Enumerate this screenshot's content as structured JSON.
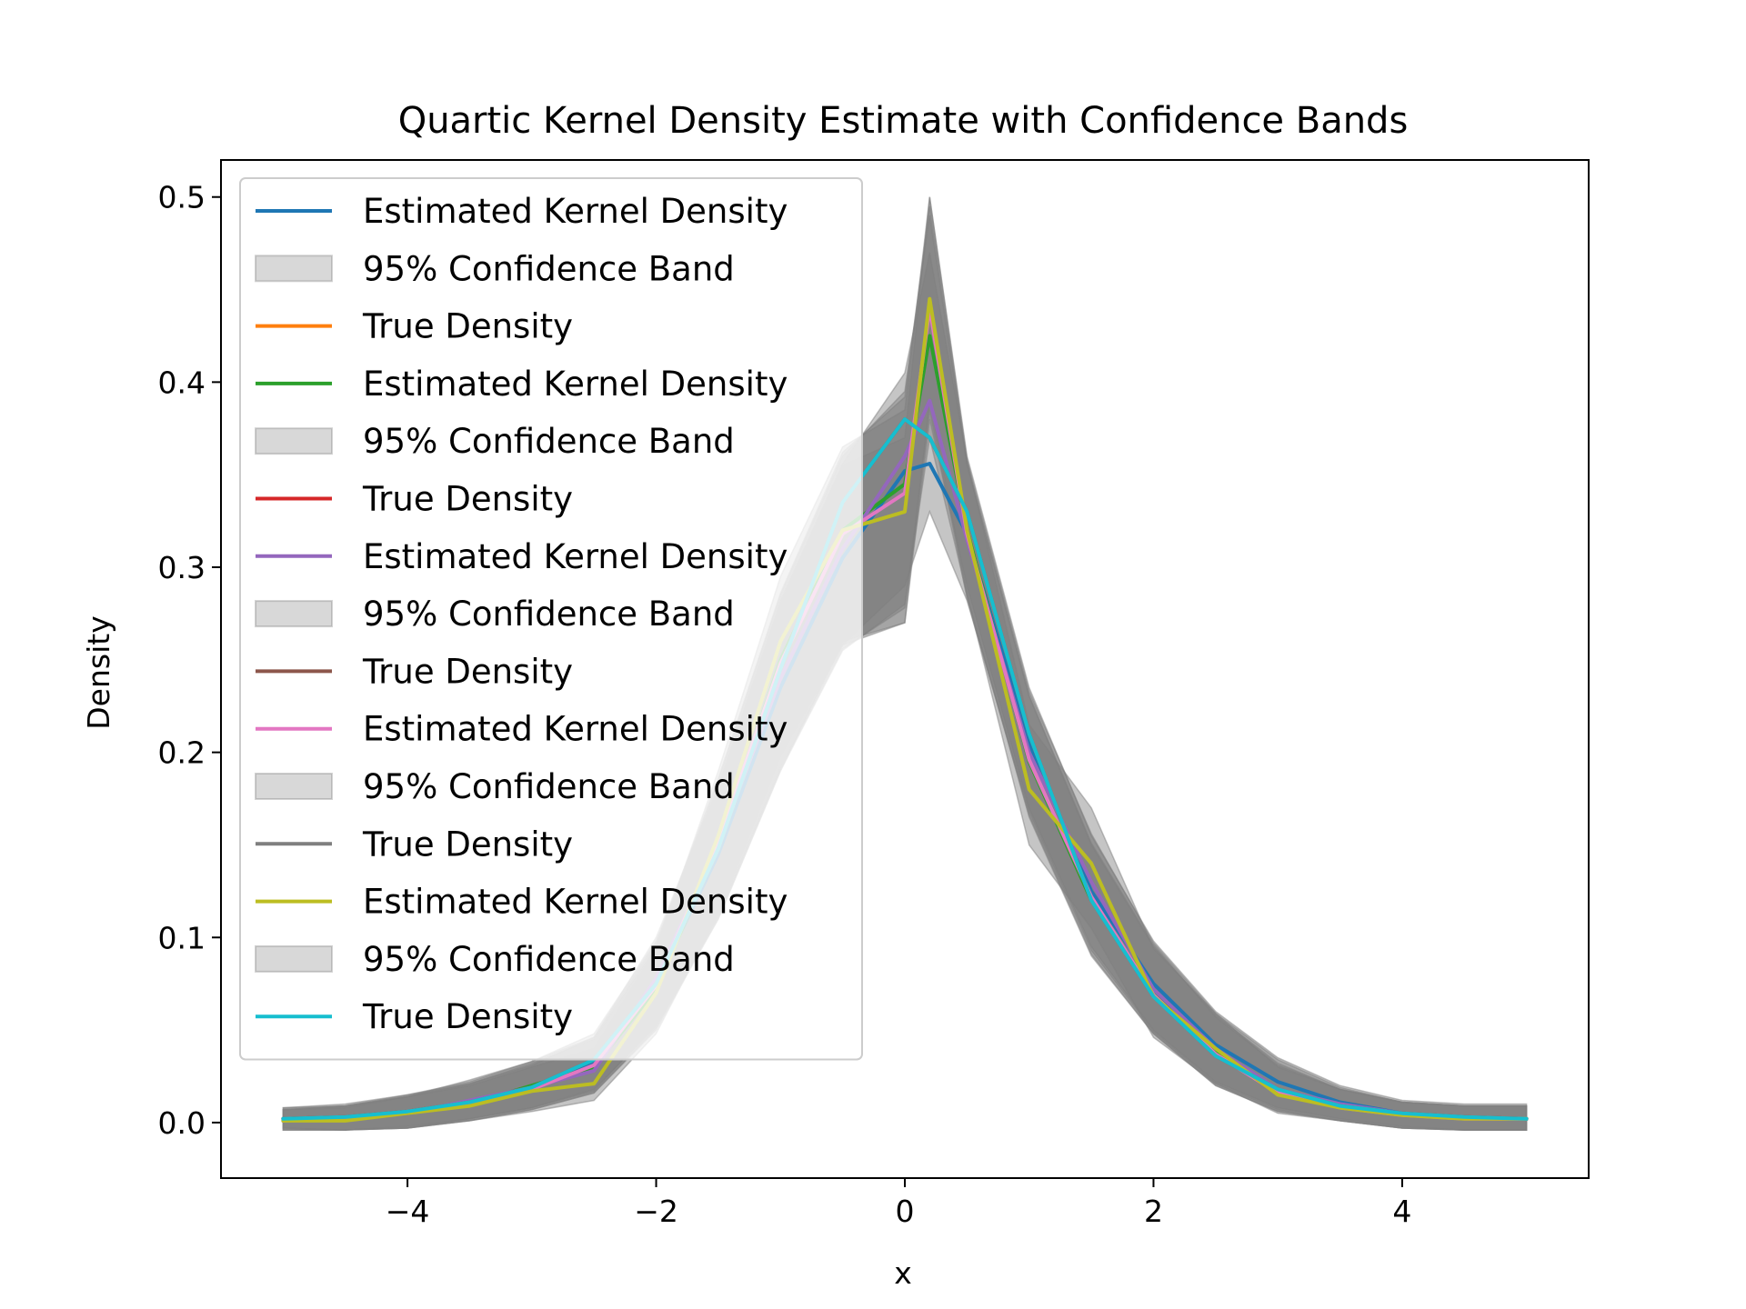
{
  "chart_data": {
    "type": "line",
    "title": "Quartic Kernel Density Estimate with Confidence Bands",
    "xlabel": "x",
    "ylabel": "Density",
    "xlim": [
      -5.5,
      5.5
    ],
    "ylim": [
      -0.03,
      0.52
    ],
    "xticks": [
      -4,
      -2,
      0,
      2,
      4
    ],
    "xtick_labels": [
      "−4",
      "−2",
      "0",
      "2",
      "4"
    ],
    "yticks": [
      0.0,
      0.1,
      0.2,
      0.3,
      0.4,
      0.5
    ],
    "ytick_labels": [
      "0.0",
      "0.1",
      "0.2",
      "0.3",
      "0.4",
      "0.5"
    ],
    "grid": false,
    "legend_position": "upper-left",
    "x": [
      -5.0,
      -4.5,
      -4.0,
      -3.5,
      -3.0,
      -2.5,
      -2.0,
      -1.5,
      -1.0,
      -0.5,
      0.0,
      0.2,
      0.5,
      1.0,
      1.5,
      2.0,
      2.5,
      3.0,
      3.5,
      4.0,
      4.5,
      5.0
    ],
    "series": [
      {
        "name": "Estimated Kernel Density",
        "kind": "line",
        "color": "#1f77b4",
        "values": [
          0.002,
          0.003,
          0.006,
          0.011,
          0.018,
          0.032,
          0.075,
          0.145,
          0.235,
          0.305,
          0.352,
          0.356,
          0.318,
          0.205,
          0.125,
          0.075,
          0.042,
          0.022,
          0.011,
          0.005,
          0.003,
          0.002
        ]
      },
      {
        "name": "95% Confidence Band",
        "kind": "band",
        "color": "#7f7f7f",
        "lower": [
          -0.003,
          -0.004,
          -0.003,
          0.002,
          0.008,
          0.018,
          0.052,
          0.11,
          0.19,
          0.26,
          0.27,
          0.38,
          0.29,
          0.17,
          0.095,
          0.05,
          0.022,
          0.008,
          0.002,
          -0.002,
          -0.004,
          -0.004
        ],
        "upper": [
          0.008,
          0.01,
          0.015,
          0.022,
          0.033,
          0.048,
          0.098,
          0.18,
          0.28,
          0.355,
          0.37,
          0.5,
          0.36,
          0.235,
          0.155,
          0.098,
          0.06,
          0.035,
          0.02,
          0.012,
          0.01,
          0.01
        ]
      },
      {
        "name": "True Density",
        "kind": "line",
        "color": "#ff7f0e",
        "values": [
          0.002,
          0.003,
          0.006,
          0.011,
          0.019,
          0.034,
          0.075,
          0.148,
          0.245,
          0.335,
          0.38,
          0.37,
          0.33,
          0.21,
          0.12,
          0.068,
          0.036,
          0.018,
          0.009,
          0.005,
          0.003,
          0.002
        ]
      },
      {
        "name": "Estimated Kernel Density",
        "kind": "line",
        "color": "#2ca02c",
        "values": [
          0.001,
          0.002,
          0.005,
          0.01,
          0.02,
          0.03,
          0.072,
          0.15,
          0.25,
          0.32,
          0.345,
          0.425,
          0.32,
          0.195,
          0.12,
          0.07,
          0.038,
          0.016,
          0.008,
          0.004,
          0.002,
          0.002
        ]
      },
      {
        "name": "95% Confidence Band",
        "kind": "band",
        "color": "#7f7f7f",
        "lower": [
          -0.004,
          -0.004,
          -0.003,
          0.001,
          0.007,
          0.016,
          0.05,
          0.11,
          0.19,
          0.255,
          0.28,
          0.37,
          0.285,
          0.165,
          0.09,
          0.048,
          0.02,
          0.006,
          0.001,
          -0.003,
          -0.004,
          -0.004
        ],
        "upper": [
          0.007,
          0.009,
          0.014,
          0.021,
          0.032,
          0.045,
          0.095,
          0.185,
          0.285,
          0.36,
          0.395,
          0.49,
          0.355,
          0.23,
          0.15,
          0.095,
          0.058,
          0.032,
          0.018,
          0.011,
          0.009,
          0.009
        ]
      },
      {
        "name": "True Density",
        "kind": "line",
        "color": "#d62728",
        "values": [
          0.002,
          0.003,
          0.006,
          0.011,
          0.019,
          0.034,
          0.075,
          0.148,
          0.245,
          0.335,
          0.38,
          0.37,
          0.33,
          0.21,
          0.12,
          0.068,
          0.036,
          0.018,
          0.009,
          0.005,
          0.003,
          0.002
        ]
      },
      {
        "name": "Estimated Kernel Density",
        "kind": "line",
        "color": "#9467bd",
        "values": [
          0.002,
          0.002,
          0.005,
          0.012,
          0.019,
          0.028,
          0.078,
          0.15,
          0.24,
          0.31,
          0.36,
          0.39,
          0.315,
          0.2,
          0.13,
          0.072,
          0.04,
          0.018,
          0.01,
          0.005,
          0.002,
          0.002
        ]
      },
      {
        "name": "95% Confidence Band",
        "kind": "band",
        "color": "#7f7f7f",
        "lower": [
          -0.003,
          -0.004,
          -0.002,
          0.002,
          0.008,
          0.017,
          0.053,
          0.112,
          0.192,
          0.258,
          0.29,
          0.33,
          0.282,
          0.168,
          0.093,
          0.049,
          0.021,
          0.007,
          0.001,
          -0.003,
          -0.004,
          -0.004
        ],
        "upper": [
          0.008,
          0.009,
          0.014,
          0.023,
          0.033,
          0.046,
          0.1,
          0.182,
          0.282,
          0.356,
          0.405,
          0.47,
          0.358,
          0.233,
          0.156,
          0.097,
          0.059,
          0.034,
          0.019,
          0.011,
          0.009,
          0.009
        ]
      },
      {
        "name": "True Density",
        "kind": "line",
        "color": "#8c564b",
        "values": [
          0.002,
          0.003,
          0.006,
          0.011,
          0.019,
          0.034,
          0.075,
          0.148,
          0.245,
          0.335,
          0.38,
          0.37,
          0.33,
          0.21,
          0.12,
          0.068,
          0.036,
          0.018,
          0.009,
          0.005,
          0.003,
          0.002
        ]
      },
      {
        "name": "Estimated Kernel Density",
        "kind": "line",
        "color": "#e377c2",
        "values": [
          0.001,
          0.002,
          0.006,
          0.01,
          0.018,
          0.031,
          0.074,
          0.152,
          0.248,
          0.318,
          0.34,
          0.44,
          0.318,
          0.196,
          0.122,
          0.069,
          0.037,
          0.016,
          0.008,
          0.004,
          0.002,
          0.002
        ]
      },
      {
        "name": "95% Confidence Band",
        "kind": "band",
        "color": "#7f7f7f",
        "lower": [
          -0.004,
          -0.004,
          -0.003,
          0.001,
          0.007,
          0.016,
          0.051,
          0.111,
          0.191,
          0.256,
          0.278,
          0.385,
          0.283,
          0.166,
          0.091,
          0.048,
          0.02,
          0.006,
          0.001,
          -0.003,
          -0.004,
          -0.004
        ],
        "upper": [
          0.007,
          0.009,
          0.015,
          0.021,
          0.031,
          0.046,
          0.097,
          0.186,
          0.286,
          0.362,
          0.392,
          0.495,
          0.356,
          0.231,
          0.151,
          0.096,
          0.057,
          0.031,
          0.018,
          0.011,
          0.009,
          0.009
        ]
      },
      {
        "name": "True Density",
        "kind": "line",
        "color": "#7f7f7f",
        "values": [
          0.002,
          0.003,
          0.006,
          0.011,
          0.019,
          0.034,
          0.075,
          0.148,
          0.245,
          0.335,
          0.38,
          0.37,
          0.33,
          0.21,
          0.12,
          0.068,
          0.036,
          0.018,
          0.009,
          0.005,
          0.003,
          0.002
        ]
      },
      {
        "name": "Estimated Kernel Density",
        "kind": "line",
        "color": "#bcbd22",
        "values": [
          0.001,
          0.001,
          0.005,
          0.009,
          0.017,
          0.021,
          0.07,
          0.155,
          0.26,
          0.32,
          0.33,
          0.445,
          0.32,
          0.18,
          0.14,
          0.068,
          0.04,
          0.015,
          0.008,
          0.004,
          0.002,
          0.002
        ]
      },
      {
        "name": "95% Confidence Band",
        "kind": "band",
        "color": "#7f7f7f",
        "lower": [
          -0.004,
          -0.004,
          -0.003,
          0.001,
          0.006,
          0.012,
          0.048,
          0.113,
          0.198,
          0.258,
          0.27,
          0.39,
          0.285,
          0.15,
          0.105,
          0.046,
          0.021,
          0.005,
          0.001,
          -0.003,
          -0.004,
          -0.004
        ],
        "upper": [
          0.007,
          0.008,
          0.014,
          0.02,
          0.03,
          0.04,
          0.094,
          0.19,
          0.295,
          0.365,
          0.385,
          0.5,
          0.358,
          0.215,
          0.17,
          0.094,
          0.059,
          0.03,
          0.018,
          0.011,
          0.009,
          0.009
        ]
      },
      {
        "name": "True Density",
        "kind": "line",
        "color": "#17becf",
        "values": [
          0.002,
          0.003,
          0.006,
          0.011,
          0.019,
          0.034,
          0.075,
          0.148,
          0.245,
          0.335,
          0.38,
          0.37,
          0.33,
          0.21,
          0.12,
          0.068,
          0.036,
          0.018,
          0.009,
          0.005,
          0.003,
          0.002
        ]
      }
    ]
  }
}
